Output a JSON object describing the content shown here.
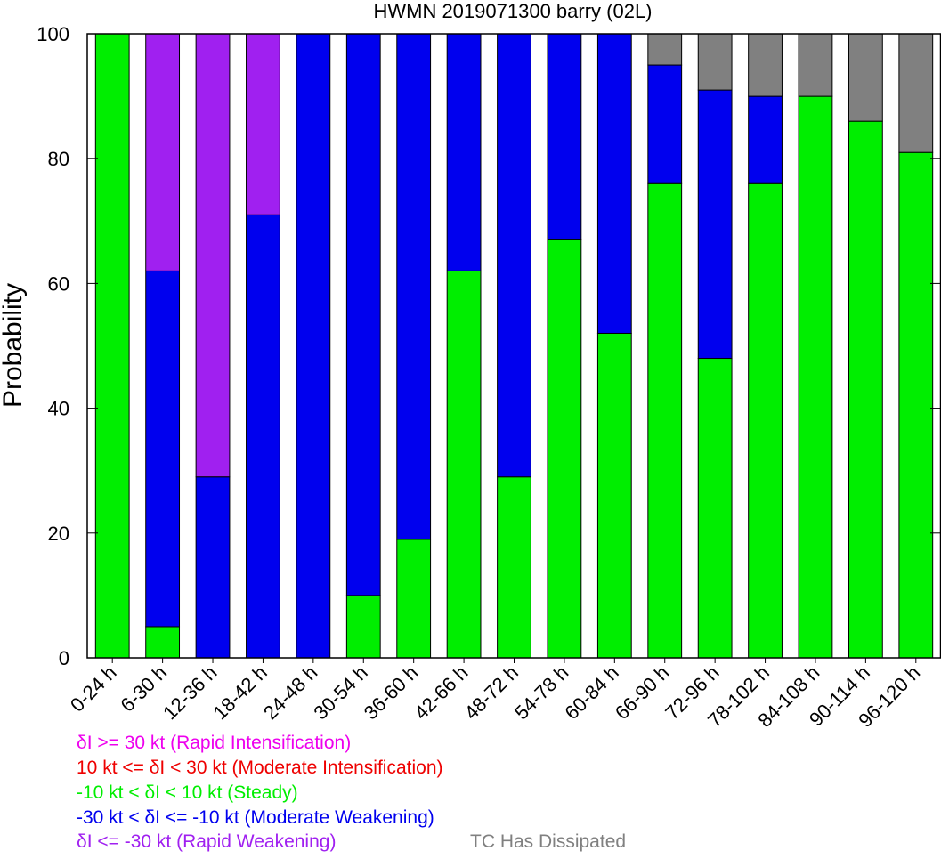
{
  "chart_data": {
    "type": "bar",
    "stacked": true,
    "title": "HWMN 2019071300 barry (02L)",
    "xlabel": "",
    "ylabel": "Probability",
    "ylim": [
      0,
      100
    ],
    "yticks": [
      0,
      20,
      40,
      60,
      80,
      100
    ],
    "grid": false,
    "categories": [
      "0-24 h",
      "6-30 h",
      "12-36 h",
      "18-42 h",
      "24-48 h",
      "30-54 h",
      "36-60 h",
      "42-66 h",
      "48-72 h",
      "54-78 h",
      "60-84 h",
      "66-90 h",
      "72-96 h",
      "78-102 h",
      "84-108 h",
      "90-114 h",
      "96-120 h"
    ],
    "series": [
      {
        "name": "Steady",
        "color": "#00ee00",
        "values": [
          100,
          5,
          0,
          0,
          0,
          10,
          19,
          62,
          29,
          67,
          52,
          76,
          48,
          76,
          90,
          86,
          81
        ]
      },
      {
        "name": "Moderate Weakening",
        "color": "#0000ee",
        "values": [
          0,
          57,
          29,
          71,
          100,
          90,
          81,
          38,
          71,
          33,
          48,
          19,
          43,
          14,
          0,
          0,
          0
        ]
      },
      {
        "name": "Rapid Weakening",
        "color": "#a020f0",
        "values": [
          0,
          38,
          71,
          29,
          0,
          0,
          0,
          0,
          0,
          0,
          0,
          0,
          0,
          0,
          0,
          0,
          0
        ]
      },
      {
        "name": "TC Has Dissipated",
        "color": "#808080",
        "values": [
          0,
          0,
          0,
          0,
          0,
          0,
          0,
          0,
          0,
          0,
          0,
          5,
          9,
          10,
          10,
          14,
          19
        ]
      }
    ],
    "legend": {
      "placement": "bottom-left",
      "entries": [
        {
          "text": "δI >= 30 kt (Rapid Intensification)",
          "color": "#ee00ee"
        },
        {
          "text": "10 kt <= δI < 30 kt (Moderate Intensification)",
          "color": "#ee0000"
        },
        {
          "text": "-10 kt < δI < 10 kt (Steady)",
          "color": "#00ee00"
        },
        {
          "text": "-30 kt < δI <= -10 kt (Moderate Weakening)",
          "color": "#0000ee"
        },
        {
          "text": "δI <= -30 kt (Rapid Weakening)",
          "color": "#a020f0"
        },
        {
          "text": "TC Has Dissipated",
          "color": "#808080"
        }
      ]
    }
  }
}
